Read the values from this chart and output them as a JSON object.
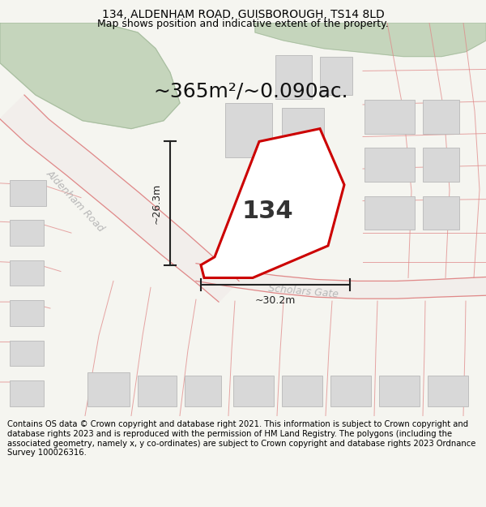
{
  "title_line1": "134, ALDENHAM ROAD, GUISBOROUGH, TS14 8LD",
  "title_line2": "Map shows position and indicative extent of the property.",
  "area_label": "~365m²/~0.090ac.",
  "property_number": "134",
  "dim_vertical": "~26.3m",
  "dim_horizontal": "~30.2m",
  "road_label1": "Aldenham Road",
  "road_label2": "Scholars Gate",
  "footer_text": "Contains OS data © Crown copyright and database right 2021. This information is subject to Crown copyright and database rights 2023 and is reproduced with the permission of HM Land Registry. The polygons (including the associated geometry, namely x, y co-ordinates) are subject to Crown copyright and database rights 2023 Ordnance Survey 100026316.",
  "bg_color": "#f5f5f0",
  "map_bg": "#ffffff",
  "green_color": "#c5d5bc",
  "green_border": "#a8bea0",
  "road_line_color": "#e08888",
  "road_fill_color": "#f2eeeb",
  "building_color": "#d8d8d8",
  "building_border": "#b8b8b8",
  "property_outline_color": "#cc0000",
  "property_fill_color": "#ffffff",
  "dim_line_color": "#222222",
  "road_text_color": "#b8b8b8",
  "title_fontsize": 10,
  "subtitle_fontsize": 9,
  "area_fontsize": 18,
  "prop_num_fontsize": 22,
  "dim_fontsize": 9,
  "road_fontsize": 9,
  "footer_fontsize": 7.2,
  "map_xlim": [
    0,
    600
  ],
  "map_ylim": [
    0,
    490
  ]
}
